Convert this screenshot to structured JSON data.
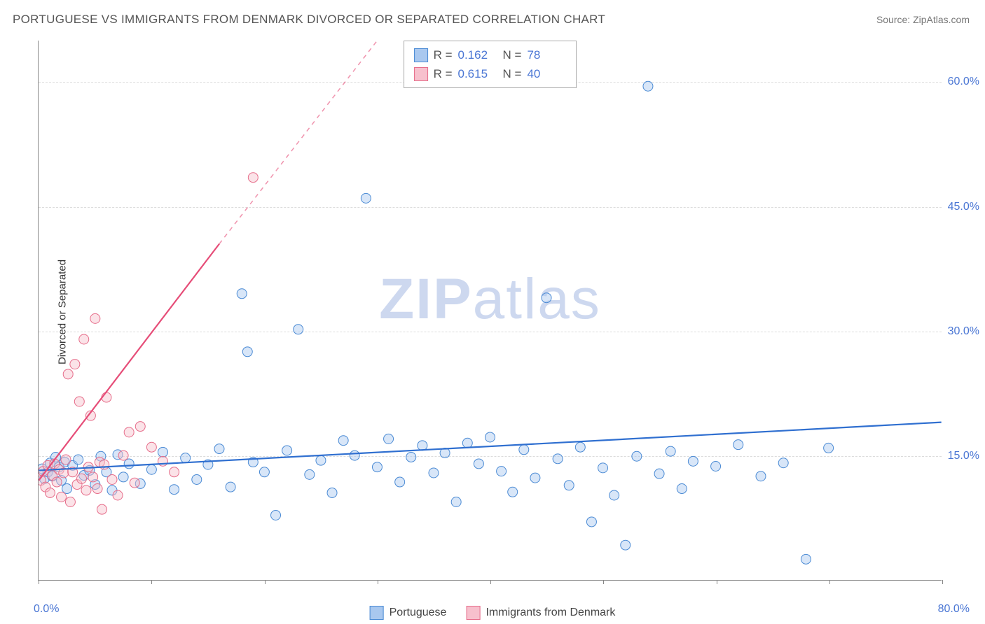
{
  "title": "PORTUGUESE VS IMMIGRANTS FROM DENMARK DIVORCED OR SEPARATED CORRELATION CHART",
  "source": "Source: ZipAtlas.com",
  "watermark_a": "ZIP",
  "watermark_b": "atlas",
  "y_axis_label": "Divorced or Separated",
  "chart": {
    "type": "scatter",
    "xlim": [
      0,
      80
    ],
    "ylim": [
      0,
      65
    ],
    "x_ticks": [
      0,
      10,
      20,
      30,
      40,
      50,
      60,
      70,
      80
    ],
    "y_gridlines": [
      15,
      30,
      45,
      60
    ],
    "x_tick_labels": {
      "0": "0.0%",
      "80": "80.0%"
    },
    "y_tick_labels": {
      "15": "15.0%",
      "30": "30.0%",
      "45": "45.0%",
      "60": "60.0%"
    },
    "background_color": "#ffffff",
    "grid_color": "#dcdcdc",
    "axis_color": "#888888",
    "tick_label_color": "#4a76d4",
    "marker_radius": 7,
    "marker_opacity": 0.45,
    "line_width": 2.2
  },
  "series": [
    {
      "name": "Portuguese",
      "stat_r": "0.162",
      "stat_n": "78",
      "fill": "#a9c8ef",
      "stroke": "#4a8ad4",
      "line_color": "#2f6fd0",
      "trend": {
        "x1": 0,
        "y1": 13.2,
        "x2": 80,
        "y2": 19.0,
        "dashed_after_x": 80
      },
      "points": [
        [
          0.3,
          13.4
        ],
        [
          0.5,
          12.2
        ],
        [
          0.8,
          13.0
        ],
        [
          1.0,
          14.1
        ],
        [
          1.2,
          12.5
        ],
        [
          1.5,
          14.8
        ],
        [
          1.8,
          13.6
        ],
        [
          2.0,
          12.0
        ],
        [
          2.3,
          14.2
        ],
        [
          2.5,
          11.0
        ],
        [
          3.0,
          13.8
        ],
        [
          3.5,
          14.5
        ],
        [
          4.0,
          12.6
        ],
        [
          4.5,
          13.2
        ],
        [
          5.0,
          11.5
        ],
        [
          5.5,
          14.9
        ],
        [
          6.0,
          13.0
        ],
        [
          6.5,
          10.8
        ],
        [
          7.0,
          15.1
        ],
        [
          7.5,
          12.4
        ],
        [
          8.0,
          14.0
        ],
        [
          9.0,
          11.6
        ],
        [
          10.0,
          13.3
        ],
        [
          11.0,
          15.4
        ],
        [
          12.0,
          10.9
        ],
        [
          13.0,
          14.7
        ],
        [
          14.0,
          12.1
        ],
        [
          15.0,
          13.9
        ],
        [
          16.0,
          15.8
        ],
        [
          17.0,
          11.2
        ],
        [
          18.0,
          34.5
        ],
        [
          18.5,
          27.5
        ],
        [
          19.0,
          14.2
        ],
        [
          20.0,
          13.0
        ],
        [
          21.0,
          7.8
        ],
        [
          22.0,
          15.6
        ],
        [
          23.0,
          30.2
        ],
        [
          24.0,
          12.7
        ],
        [
          25.0,
          14.4
        ],
        [
          26.0,
          10.5
        ],
        [
          27.0,
          16.8
        ],
        [
          28.0,
          15.0
        ],
        [
          29.0,
          46.0
        ],
        [
          30.0,
          13.6
        ],
        [
          31.0,
          17.0
        ],
        [
          32.0,
          11.8
        ],
        [
          33.0,
          14.8
        ],
        [
          34.0,
          16.2
        ],
        [
          35.0,
          12.9
        ],
        [
          36.0,
          15.3
        ],
        [
          37.0,
          9.4
        ],
        [
          38.0,
          16.5
        ],
        [
          39.0,
          14.0
        ],
        [
          40.0,
          17.2
        ],
        [
          41.0,
          13.1
        ],
        [
          42.0,
          10.6
        ],
        [
          43.0,
          15.7
        ],
        [
          44.0,
          12.3
        ],
        [
          45.0,
          34.0
        ],
        [
          46.0,
          14.6
        ],
        [
          47.0,
          11.4
        ],
        [
          48.0,
          16.0
        ],
        [
          49.0,
          7.0
        ],
        [
          50.0,
          13.5
        ],
        [
          51.0,
          10.2
        ],
        [
          52.0,
          4.2
        ],
        [
          53.0,
          14.9
        ],
        [
          54.0,
          59.5
        ],
        [
          55.0,
          12.8
        ],
        [
          56.0,
          15.5
        ],
        [
          57.0,
          11.0
        ],
        [
          58.0,
          14.3
        ],
        [
          60.0,
          13.7
        ],
        [
          62.0,
          16.3
        ],
        [
          64.0,
          12.5
        ],
        [
          66.0,
          14.1
        ],
        [
          68.0,
          2.5
        ],
        [
          70.0,
          15.9
        ]
      ]
    },
    {
      "name": "Immigrants from Denmark",
      "stat_r": "0.615",
      "stat_n": "40",
      "fill": "#f7c0cd",
      "stroke": "#e66d8a",
      "line_color": "#e64d78",
      "trend": {
        "x1": 0,
        "y1": 12.0,
        "x2": 16,
        "y2": 40.5,
        "dashed_after_x": 16,
        "x3": 30,
        "y3": 65
      },
      "points": [
        [
          0.2,
          12.0
        ],
        [
          0.4,
          13.1
        ],
        [
          0.6,
          11.2
        ],
        [
          0.8,
          13.8
        ],
        [
          1.0,
          10.5
        ],
        [
          1.2,
          12.6
        ],
        [
          1.4,
          14.0
        ],
        [
          1.6,
          11.8
        ],
        [
          1.8,
          13.3
        ],
        [
          2.0,
          10.0
        ],
        [
          2.2,
          12.9
        ],
        [
          2.4,
          14.5
        ],
        [
          2.6,
          24.8
        ],
        [
          2.8,
          9.4
        ],
        [
          3.0,
          13.0
        ],
        [
          3.2,
          26.0
        ],
        [
          3.4,
          11.5
        ],
        [
          3.6,
          21.5
        ],
        [
          3.8,
          12.2
        ],
        [
          4.0,
          29.0
        ],
        [
          4.2,
          10.8
        ],
        [
          4.4,
          13.6
        ],
        [
          4.6,
          19.8
        ],
        [
          4.8,
          12.4
        ],
        [
          5.0,
          31.5
        ],
        [
          5.2,
          11.0
        ],
        [
          5.4,
          14.2
        ],
        [
          5.6,
          8.5
        ],
        [
          5.8,
          13.9
        ],
        [
          6.0,
          22.0
        ],
        [
          6.5,
          12.1
        ],
        [
          7.0,
          10.2
        ],
        [
          7.5,
          15.0
        ],
        [
          8.0,
          17.8
        ],
        [
          8.5,
          11.7
        ],
        [
          9.0,
          18.5
        ],
        [
          10.0,
          16.0
        ],
        [
          11.0,
          14.3
        ],
        [
          12.0,
          13.0
        ],
        [
          19.0,
          48.5
        ]
      ]
    }
  ],
  "stats_labels": {
    "r": "R =",
    "n": "N ="
  },
  "legend": {
    "series1": "Portuguese",
    "series2": "Immigrants from Denmark"
  }
}
